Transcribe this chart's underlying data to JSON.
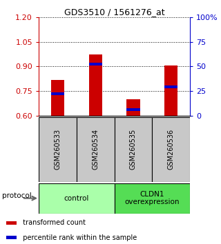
{
  "title": "GDS3510 / 1561276_at",
  "samples": [
    "GSM260533",
    "GSM260534",
    "GSM260535",
    "GSM260536"
  ],
  "red_values": [
    0.82,
    0.975,
    0.7,
    0.905
  ],
  "blue_values": [
    0.735,
    0.915,
    0.638,
    0.775
  ],
  "ylim_left": [
    0.6,
    1.2
  ],
  "ylim_right": [
    0,
    100
  ],
  "left_ticks": [
    0.6,
    0.75,
    0.9,
    1.05,
    1.2
  ],
  "right_ticks": [
    0,
    25,
    50,
    75,
    100
  ],
  "right_tick_labels": [
    "0",
    "25",
    "50",
    "75",
    "100%"
  ],
  "left_tick_color": "#cc0000",
  "right_tick_color": "#0000cc",
  "bar_color": "#cc0000",
  "marker_color": "#0000cc",
  "groups": [
    {
      "label": "control",
      "indices": [
        0,
        1
      ],
      "color": "#aaffaa"
    },
    {
      "label": "CLDN1\noverexpression",
      "indices": [
        2,
        3
      ],
      "color": "#55dd55"
    }
  ],
  "protocol_label": "protocol",
  "legend_items": [
    {
      "color": "#cc0000",
      "label": "  transformed count"
    },
    {
      "color": "#0000cc",
      "label": "  percentile rank within the sample"
    }
  ],
  "background_color": "#ffffff",
  "sample_area_color": "#c8c8c8",
  "bar_width": 0.35,
  "base_value": 0.6
}
